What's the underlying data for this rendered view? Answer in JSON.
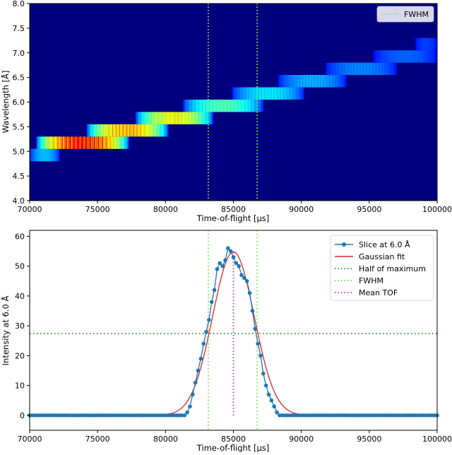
{
  "chart_data": [
    {
      "type": "heatmap",
      "colormap": "jet",
      "xlabel": "Time-of-flight [μs]",
      "ylabel": "Wavelength [Å]",
      "xlim": [
        70000,
        100000
      ],
      "ylim": [
        4.0,
        8.0
      ],
      "xticks": [
        "70000",
        "75000",
        "80000",
        "85000",
        "90000",
        "95000",
        "100000"
      ],
      "yticks": [
        "4.0",
        "4.5",
        "5.0",
        "5.5",
        "6.0",
        "6.5",
        "7.0",
        "7.5",
        "8.0"
      ],
      "legend": {
        "position": "top-right",
        "entries": [
          {
            "label": "FWHM",
            "color": "#7fdf5a",
            "style": "dotted"
          }
        ]
      },
      "vlines": [
        83150,
        86750
      ],
      "bands": [
        {
          "y0": 4.8,
          "y1": 5.05,
          "x0": 70000,
          "x1": 72200,
          "peak": 0.35
        },
        {
          "y0": 5.05,
          "y1": 5.3,
          "x0": 70500,
          "x1": 77300,
          "peak": 1.0
        },
        {
          "y0": 5.3,
          "y1": 5.55,
          "x0": 74200,
          "x1": 80200,
          "peak": 0.82
        },
        {
          "y0": 5.55,
          "y1": 5.8,
          "x0": 77800,
          "x1": 83500,
          "peak": 0.72
        },
        {
          "y0": 5.8,
          "y1": 6.05,
          "x0": 81300,
          "x1": 87200,
          "peak": 0.52
        },
        {
          "y0": 6.05,
          "y1": 6.3,
          "x0": 84900,
          "x1": 90200,
          "peak": 0.4
        },
        {
          "y0": 6.3,
          "y1": 6.55,
          "x0": 88300,
          "x1": 93300,
          "peak": 0.33
        },
        {
          "y0": 6.55,
          "y1": 6.8,
          "x0": 91800,
          "x1": 97000,
          "peak": 0.28
        },
        {
          "y0": 6.8,
          "y1": 7.05,
          "x0": 95300,
          "x1": 100000,
          "peak": 0.24
        },
        {
          "y0": 7.05,
          "y1": 7.3,
          "x0": 98400,
          "x1": 100000,
          "peak": 0.2
        }
      ]
    },
    {
      "type": "line",
      "xlabel": "Time-of-flight [μs]",
      "ylabel": "Intensity at 6.0 Å",
      "xlim": [
        70000,
        100000
      ],
      "ylim": [
        -5,
        62
      ],
      "xticks": [
        "70000",
        "75000",
        "80000",
        "85000",
        "90000",
        "95000",
        "100000"
      ],
      "yticks": [
        "0",
        "10",
        "20",
        "30",
        "40",
        "50",
        "60"
      ],
      "legend_position": "top-right",
      "series": [
        {
          "name": "Slice at 6.0 Å",
          "color": "#1f77b4",
          "style": "line-markers",
          "x": [
            81400,
            81600,
            81800,
            82000,
            82200,
            82400,
            82600,
            82800,
            83000,
            83200,
            83400,
            83600,
            83800,
            84000,
            84200,
            84400,
            84600,
            84800,
            85000,
            85200,
            85400,
            85600,
            85800,
            86000,
            86200,
            86400,
            86600,
            86800,
            87000,
            87200,
            87400,
            87600,
            87800,
            88000,
            88200,
            88400
          ],
          "y": [
            0,
            1,
            3,
            7,
            11,
            15,
            19,
            24,
            28,
            32,
            38,
            42,
            49,
            51,
            50,
            52,
            56,
            55,
            53,
            51,
            50,
            47,
            46,
            45,
            41,
            35,
            29,
            24,
            20,
            14,
            10,
            7,
            5,
            3,
            1,
            0
          ],
          "baseline": 0
        },
        {
          "name": "Gaussian fit",
          "color": "#d62728",
          "style": "line",
          "function": "gaussian",
          "amplitude": 54.8,
          "mean": 85000,
          "sigma": 1530
        },
        {
          "name": "Half of maximum",
          "color": "#2ca02c",
          "style": "dotted-horizontal",
          "y": 27.4
        },
        {
          "name": "FWHM",
          "color": "#7fdf5a",
          "style": "dotted-vertical",
          "x": [
            83150,
            86750
          ]
        },
        {
          "name": "Mean TOF",
          "color": "#b03fc0",
          "style": "dotted-vertical",
          "x": [
            85000
          ]
        }
      ]
    }
  ]
}
